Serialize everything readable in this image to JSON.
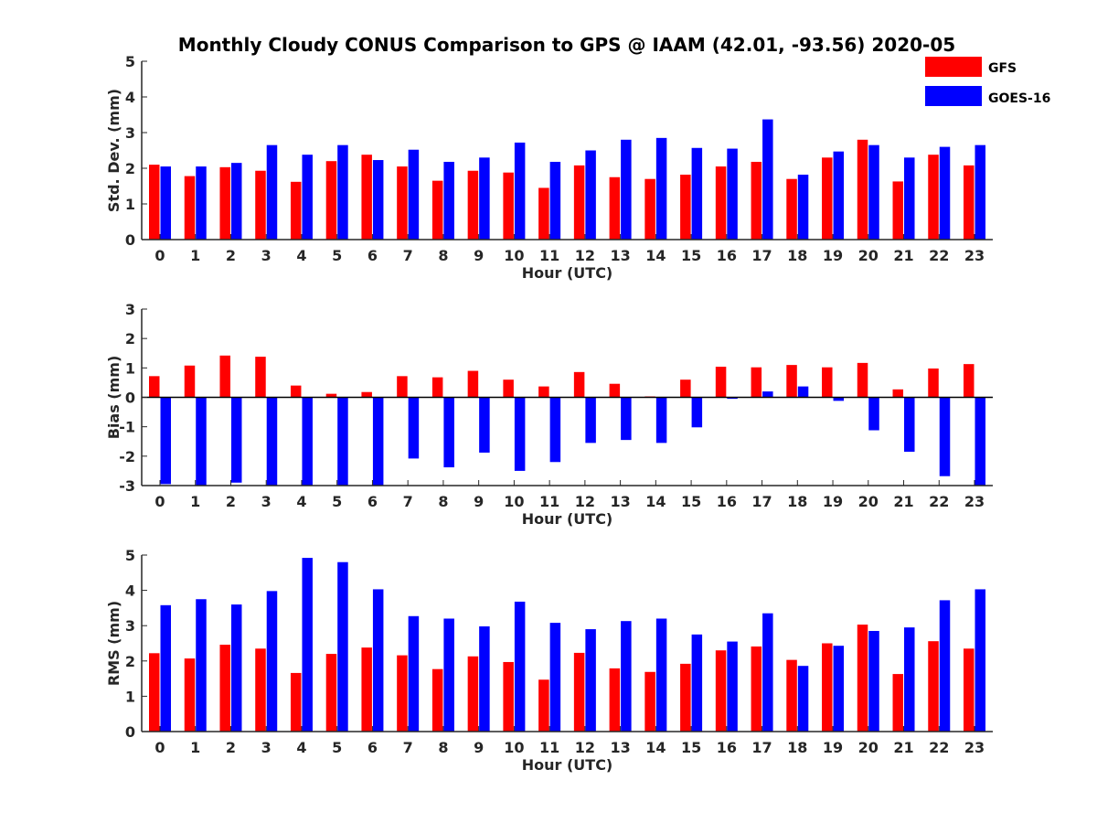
{
  "title": "Monthly Cloudy CONUS Comparison to GPS @ IAAM (42.01, -93.56) 2020-05",
  "colors": {
    "GFS": "#ff0000",
    "GOES-16": "#0000ff",
    "axis": "#262626"
  },
  "legend": {
    "placement": "top-right",
    "entries": [
      "GFS",
      "GOES-16"
    ]
  },
  "chart_data": [
    {
      "type": "bar",
      "xlabel": "Hour (UTC)",
      "ylabel": "Std. Dev. (mm)",
      "ylim": [
        0,
        5
      ],
      "yticks": [
        0,
        1,
        2,
        3,
        4,
        5
      ],
      "grid": false,
      "categories": [
        "0",
        "1",
        "2",
        "3",
        "4",
        "5",
        "6",
        "7",
        "8",
        "9",
        "10",
        "11",
        "12",
        "13",
        "14",
        "15",
        "16",
        "17",
        "18",
        "19",
        "20",
        "21",
        "22",
        "23"
      ],
      "series": [
        {
          "name": "GFS",
          "values": [
            2.1,
            1.78,
            2.03,
            1.93,
            1.62,
            2.2,
            2.38,
            2.05,
            1.65,
            1.93,
            1.88,
            1.45,
            2.08,
            1.75,
            1.7,
            1.82,
            2.05,
            2.18,
            1.7,
            2.3,
            2.8,
            1.63,
            2.38,
            2.08
          ]
        },
        {
          "name": "GOES-16",
          "values": [
            2.05,
            2.05,
            2.15,
            2.65,
            2.38,
            2.65,
            2.23,
            2.52,
            2.18,
            2.3,
            2.72,
            2.18,
            2.5,
            2.8,
            2.85,
            2.57,
            2.55,
            3.37,
            1.82,
            2.47,
            2.65,
            2.3,
            2.6,
            2.65
          ]
        }
      ]
    },
    {
      "type": "bar",
      "xlabel": "Hour (UTC)",
      "ylabel": "Bias (mm)",
      "ylim": [
        -3,
        3
      ],
      "yticks": [
        -3,
        -2,
        -1,
        0,
        1,
        2,
        3
      ],
      "grid": false,
      "categories": [
        "0",
        "1",
        "2",
        "3",
        "4",
        "5",
        "6",
        "7",
        "8",
        "9",
        "10",
        "11",
        "12",
        "13",
        "14",
        "15",
        "16",
        "17",
        "18",
        "19",
        "20",
        "21",
        "22",
        "23"
      ],
      "series": [
        {
          "name": "GFS",
          "values": [
            0.72,
            1.08,
            1.42,
            1.38,
            0.4,
            0.12,
            0.18,
            0.72,
            0.68,
            0.9,
            0.6,
            0.37,
            0.86,
            0.46,
            0.03,
            0.6,
            1.04,
            1.02,
            1.1,
            1.02,
            1.17,
            0.27,
            0.98,
            1.13
          ]
        },
        {
          "name": "GOES-16",
          "values": [
            -2.95,
            -3.0,
            -2.9,
            -3.0,
            -3.0,
            -3.0,
            -3.0,
            -2.08,
            -2.38,
            -1.88,
            -2.5,
            -2.2,
            -1.55,
            -1.45,
            -1.55,
            -1.02,
            -0.05,
            0.2,
            0.37,
            -0.12,
            -1.12,
            -1.85,
            -2.68,
            -3.0
          ]
        }
      ]
    },
    {
      "type": "bar",
      "xlabel": "Hour (UTC)",
      "ylabel": "RMS (mm)",
      "ylim": [
        0,
        5
      ],
      "yticks": [
        0,
        1,
        2,
        3,
        4,
        5
      ],
      "grid": false,
      "categories": [
        "0",
        "1",
        "2",
        "3",
        "4",
        "5",
        "6",
        "7",
        "8",
        "9",
        "10",
        "11",
        "12",
        "13",
        "14",
        "15",
        "16",
        "17",
        "18",
        "19",
        "20",
        "21",
        "22",
        "23"
      ],
      "series": [
        {
          "name": "GFS",
          "values": [
            2.22,
            2.07,
            2.46,
            2.35,
            1.66,
            2.2,
            2.38,
            2.16,
            1.77,
            2.13,
            1.97,
            1.47,
            2.23,
            1.79,
            1.69,
            1.92,
            2.3,
            2.41,
            2.03,
            2.5,
            3.03,
            1.63,
            2.56,
            2.35
          ]
        },
        {
          "name": "GOES-16",
          "values": [
            3.58,
            3.75,
            3.6,
            3.98,
            4.92,
            4.8,
            4.03,
            3.27,
            3.2,
            2.98,
            3.68,
            3.08,
            2.9,
            3.13,
            3.2,
            2.75,
            2.55,
            3.35,
            1.86,
            2.43,
            2.85,
            2.95,
            3.72,
            4.03
          ]
        }
      ]
    }
  ]
}
